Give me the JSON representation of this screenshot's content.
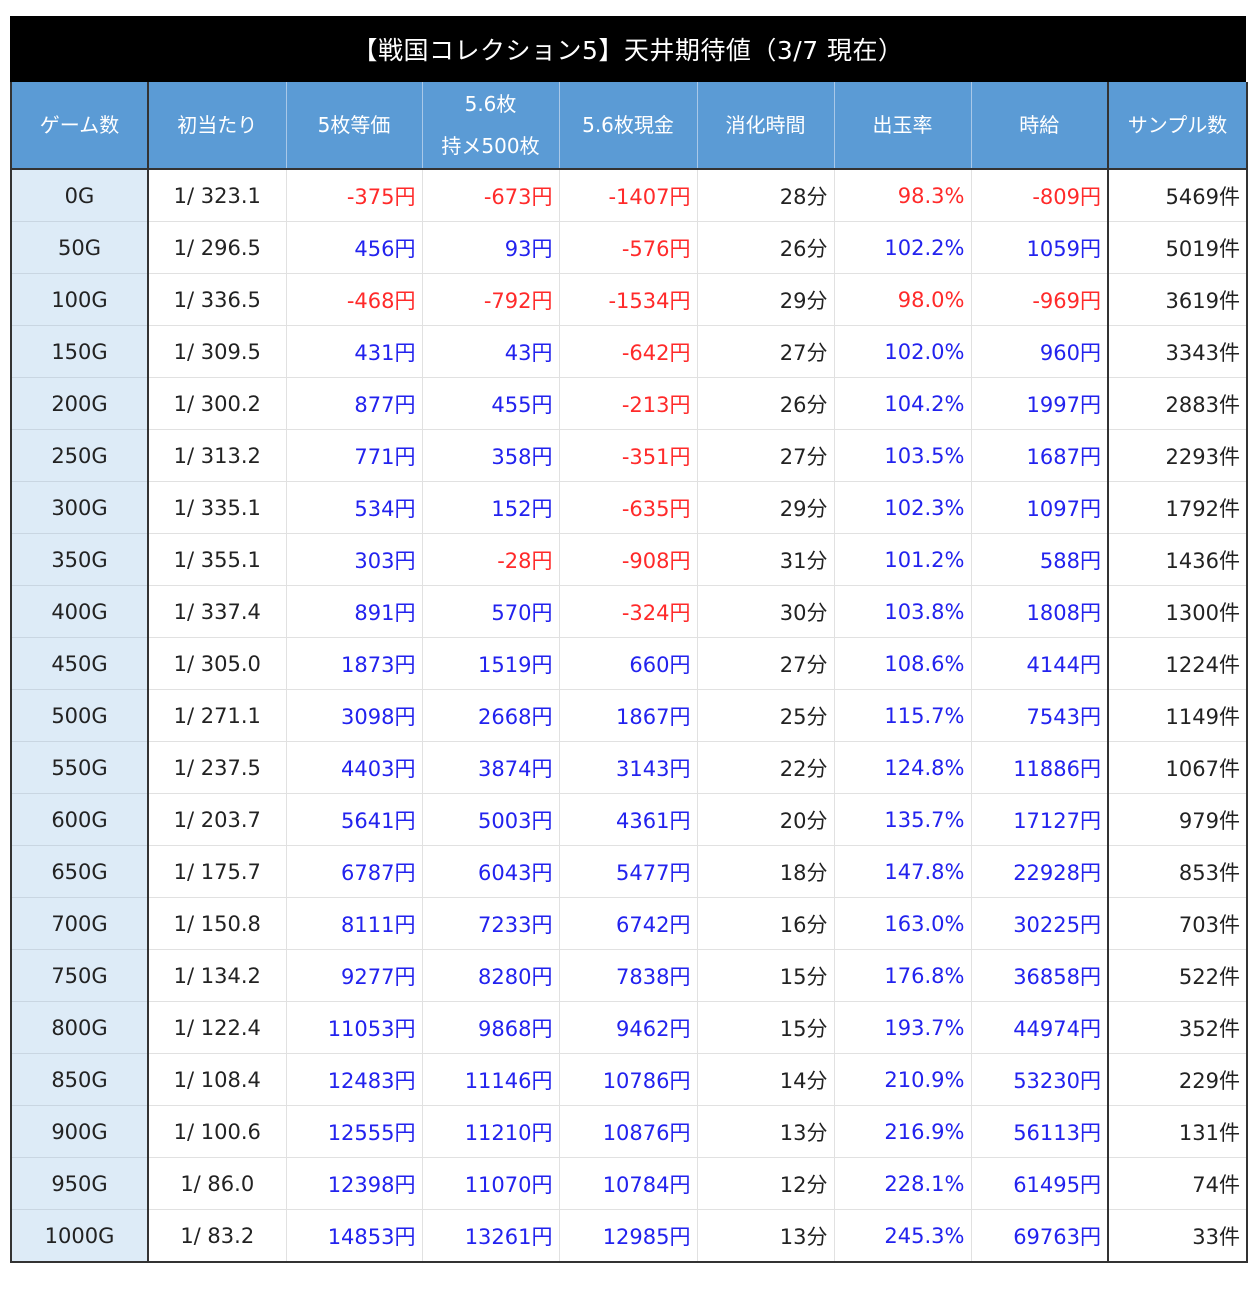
{
  "title": "【戦国コレクション5】天井期待値（3/7 現在）",
  "colors": {
    "title_bg": "#000000",
    "header_bg": "#5b9bd5",
    "game_col_bg": "#ddebf7",
    "negative": "#ff2a2a",
    "positive": "#2222ee",
    "text": "#222222"
  },
  "headers": [
    "ゲーム数",
    "初当たり",
    "5枚等価",
    "5.6枚",
    "持メ500枚",
    "5.6枚現金",
    "消化時間",
    "出玉率",
    "時給",
    "サンプル数"
  ],
  "rows": [
    {
      "game": "0G",
      "hit": "1/ 323.1",
      "eq5": "-375円",
      "mix": "-673円",
      "cash": "-1407円",
      "time": "28分",
      "rate": "98.3%",
      "hourly": "-809円",
      "samples": "5469件"
    },
    {
      "game": "50G",
      "hit": "1/ 296.5",
      "eq5": "456円",
      "mix": "93円",
      "cash": "-576円",
      "time": "26分",
      "rate": "102.2%",
      "hourly": "1059円",
      "samples": "5019件"
    },
    {
      "game": "100G",
      "hit": "1/ 336.5",
      "eq5": "-468円",
      "mix": "-792円",
      "cash": "-1534円",
      "time": "29分",
      "rate": "98.0%",
      "hourly": "-969円",
      "samples": "3619件"
    },
    {
      "game": "150G",
      "hit": "1/ 309.5",
      "eq5": "431円",
      "mix": "43円",
      "cash": "-642円",
      "time": "27分",
      "rate": "102.0%",
      "hourly": "960円",
      "samples": "3343件"
    },
    {
      "game": "200G",
      "hit": "1/ 300.2",
      "eq5": "877円",
      "mix": "455円",
      "cash": "-213円",
      "time": "26分",
      "rate": "104.2%",
      "hourly": "1997円",
      "samples": "2883件"
    },
    {
      "game": "250G",
      "hit": "1/ 313.2",
      "eq5": "771円",
      "mix": "358円",
      "cash": "-351円",
      "time": "27分",
      "rate": "103.5%",
      "hourly": "1687円",
      "samples": "2293件"
    },
    {
      "game": "300G",
      "hit": "1/ 335.1",
      "eq5": "534円",
      "mix": "152円",
      "cash": "-635円",
      "time": "29分",
      "rate": "102.3%",
      "hourly": "1097円",
      "samples": "1792件"
    },
    {
      "game": "350G",
      "hit": "1/ 355.1",
      "eq5": "303円",
      "mix": "-28円",
      "cash": "-908円",
      "time": "31分",
      "rate": "101.2%",
      "hourly": "588円",
      "samples": "1436件"
    },
    {
      "game": "400G",
      "hit": "1/ 337.4",
      "eq5": "891円",
      "mix": "570円",
      "cash": "-324円",
      "time": "30分",
      "rate": "103.8%",
      "hourly": "1808円",
      "samples": "1300件"
    },
    {
      "game": "450G",
      "hit": "1/ 305.0",
      "eq5": "1873円",
      "mix": "1519円",
      "cash": "660円",
      "time": "27分",
      "rate": "108.6%",
      "hourly": "4144円",
      "samples": "1224件"
    },
    {
      "game": "500G",
      "hit": "1/ 271.1",
      "eq5": "3098円",
      "mix": "2668円",
      "cash": "1867円",
      "time": "25分",
      "rate": "115.7%",
      "hourly": "7543円",
      "samples": "1149件"
    },
    {
      "game": "550G",
      "hit": "1/ 237.5",
      "eq5": "4403円",
      "mix": "3874円",
      "cash": "3143円",
      "time": "22分",
      "rate": "124.8%",
      "hourly": "11886円",
      "samples": "1067件"
    },
    {
      "game": "600G",
      "hit": "1/ 203.7",
      "eq5": "5641円",
      "mix": "5003円",
      "cash": "4361円",
      "time": "20分",
      "rate": "135.7%",
      "hourly": "17127円",
      "samples": "979件"
    },
    {
      "game": "650G",
      "hit": "1/ 175.7",
      "eq5": "6787円",
      "mix": "6043円",
      "cash": "5477円",
      "time": "18分",
      "rate": "147.8%",
      "hourly": "22928円",
      "samples": "853件"
    },
    {
      "game": "700G",
      "hit": "1/ 150.8",
      "eq5": "8111円",
      "mix": "7233円",
      "cash": "6742円",
      "time": "16分",
      "rate": "163.0%",
      "hourly": "30225円",
      "samples": "703件"
    },
    {
      "game": "750G",
      "hit": "1/ 134.2",
      "eq5": "9277円",
      "mix": "8280円",
      "cash": "7838円",
      "time": "15分",
      "rate": "176.8%",
      "hourly": "36858円",
      "samples": "522件"
    },
    {
      "game": "800G",
      "hit": "1/ 122.4",
      "eq5": "11053円",
      "mix": "9868円",
      "cash": "9462円",
      "time": "15分",
      "rate": "193.7%",
      "hourly": "44974円",
      "samples": "352件"
    },
    {
      "game": "850G",
      "hit": "1/ 108.4",
      "eq5": "12483円",
      "mix": "11146円",
      "cash": "10786円",
      "time": "14分",
      "rate": "210.9%",
      "hourly": "53230円",
      "samples": "229件"
    },
    {
      "game": "900G",
      "hit": "1/ 100.6",
      "eq5": "12555円",
      "mix": "11210円",
      "cash": "10876円",
      "time": "13分",
      "rate": "216.9%",
      "hourly": "56113円",
      "samples": "131件"
    },
    {
      "game": "950G",
      "hit": "1/ 86.0",
      "eq5": "12398円",
      "mix": "11070円",
      "cash": "10784円",
      "time": "12分",
      "rate": "228.1%",
      "hourly": "61495円",
      "samples": "74件"
    },
    {
      "game": "1000G",
      "hit": "1/ 83.2",
      "eq5": "14853円",
      "mix": "13261円",
      "cash": "12985円",
      "time": "13分",
      "rate": "245.3%",
      "hourly": "69763円",
      "samples": "33件"
    }
  ]
}
